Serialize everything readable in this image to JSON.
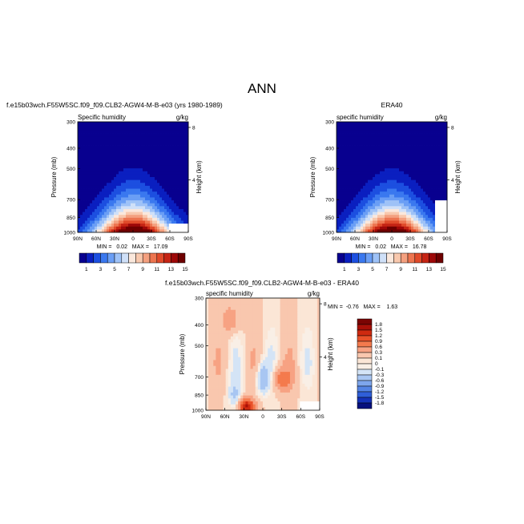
{
  "page": {
    "season": "ANN"
  },
  "chart_data": [
    {
      "type": "heatmap",
      "panel": "model",
      "title": "f.e15b03wch.F55W5SC.f09_f09.CLB2-AGW4-M-B-e03 (yrs 1980-1989)",
      "left_label": "Specific humidity",
      "right_label": "g/kg",
      "xlabel": "",
      "ylabel": "Pressure (mb)",
      "ylabel_right": "Height (km)",
      "x_ticks": [
        "90N",
        "60N",
        "30N",
        "0",
        "30S",
        "60S",
        "90S"
      ],
      "y_ticks": [
        300,
        400,
        500,
        700,
        850,
        1000
      ],
      "height_ticks": [
        8,
        4
      ],
      "stats_text": "MIN =   0.02   MAX =   17.09",
      "min": 0.02,
      "max": 17.09,
      "colorbar_labels": [
        "1",
        "3",
        "5",
        "7",
        "9",
        "11",
        "13",
        "15"
      ],
      "colorbar_colors": [
        "#08008f",
        "#0a1fc0",
        "#1c4fe0",
        "#3a78ef",
        "#6a9ef5",
        "#9ec2f7",
        "#cfe0f8",
        "#fbe8dc",
        "#f8c8ad",
        "#f4a07f",
        "#ed7550",
        "#e04a2a",
        "#c52414",
        "#9d0808",
        "#6e0000"
      ]
    },
    {
      "type": "heatmap",
      "panel": "obs",
      "title": "ERA40",
      "left_label": "specific humidity",
      "right_label": "g/kg",
      "xlabel": "",
      "ylabel": "Pressure (mb)",
      "ylabel_right": "Height (km)",
      "x_ticks": [
        "90N",
        "60N",
        "30N",
        "0",
        "30S",
        "60S",
        "90S"
      ],
      "y_ticks": [
        300,
        400,
        500,
        700,
        850,
        1000
      ],
      "height_ticks": [
        8,
        4
      ],
      "stats_text": "MIN =   0.02   MAX =   16.78",
      "min": 0.02,
      "max": 16.78,
      "colorbar_labels": [
        "1",
        "3",
        "5",
        "7",
        "9",
        "11",
        "13",
        "15"
      ],
      "colorbar_colors": [
        "#08008f",
        "#0a1fc0",
        "#1c4fe0",
        "#3a78ef",
        "#6a9ef5",
        "#9ec2f7",
        "#cfe0f8",
        "#fbe8dc",
        "#f8c8ad",
        "#f4a07f",
        "#ed7550",
        "#e04a2a",
        "#c52414",
        "#9d0808",
        "#6e0000"
      ]
    },
    {
      "type": "heatmap",
      "panel": "difference",
      "title": "f.e15b03wch.F55W5SC.f09_f09.CLB2-AGW4-M-B-e03 - ERA40",
      "left_label": "specific humidity",
      "right_label": "g/kg",
      "xlabel": "",
      "ylabel": "Pressure (mb)",
      "ylabel_right": "Height (km)",
      "x_ticks": [
        "90N",
        "60N",
        "30N",
        "0",
        "30S",
        "60S",
        "90S"
      ],
      "y_ticks": [
        300,
        400,
        500,
        700,
        850,
        1000
      ],
      "height_ticks": [
        8,
        4
      ],
      "stats_text": "MIN =  -0.76   MAX =    1.63",
      "min": -0.76,
      "max": 1.63,
      "colorbar_labels": [
        "1.8",
        "1.5",
        "1.2",
        "0.9",
        "0.6",
        "0.3",
        "0.1",
        "0",
        "-0.1",
        "-0.3",
        "-0.6",
        "-0.9",
        "-1.2",
        "-1.5",
        "-1.8"
      ],
      "colorbar_colors": [
        "#7a0403",
        "#a81008",
        "#cf2a10",
        "#e9522a",
        "#f47a4d",
        "#f7a283",
        "#f9c7ae",
        "#fbe6d6",
        "#f9efe6",
        "#d4e4f6",
        "#a8c6f2",
        "#7ea6ec",
        "#5484e4",
        "#2f5fd8",
        "#1532b8",
        "#07107e"
      ]
    }
  ]
}
